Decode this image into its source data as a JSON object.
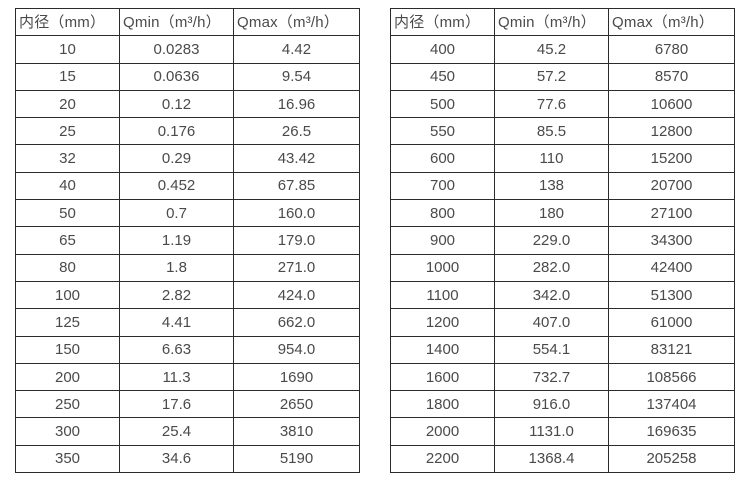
{
  "page": {
    "background_color": "#ffffff",
    "text_color": "#4a4a4a",
    "border_color": "#2b2b2b"
  },
  "tables": [
    {
      "name": "flow-table-small-diameters",
      "headers": [
        "内径（mm）",
        "Qmin（m³/h）",
        "Qmax（m³/h）"
      ],
      "rows": [
        [
          "10",
          "0.0283",
          "4.42"
        ],
        [
          "15",
          "0.0636",
          "9.54"
        ],
        [
          "20",
          "0.12",
          "16.96"
        ],
        [
          "25",
          "0.176",
          "26.5"
        ],
        [
          "32",
          "0.29",
          "43.42"
        ],
        [
          "40",
          "0.452",
          "67.85"
        ],
        [
          "50",
          "0.7",
          "160.0"
        ],
        [
          "65",
          "1.19",
          "179.0"
        ],
        [
          "80",
          "1.8",
          "271.0"
        ],
        [
          "100",
          "2.82",
          "424.0"
        ],
        [
          "125",
          "4.41",
          "662.0"
        ],
        [
          "150",
          "6.63",
          "954.0"
        ],
        [
          "200",
          "11.3",
          "1690"
        ],
        [
          "250",
          "17.6",
          "2650"
        ],
        [
          "300",
          "25.4",
          "3810"
        ],
        [
          "350",
          "34.6",
          "5190"
        ]
      ]
    },
    {
      "name": "flow-table-large-diameters",
      "headers": [
        "内径（mm）",
        "Qmin（m³/h）",
        "Qmax（m³/h）"
      ],
      "rows": [
        [
          "400",
          "45.2",
          "6780"
        ],
        [
          "450",
          "57.2",
          "8570"
        ],
        [
          "500",
          "77.6",
          "10600"
        ],
        [
          "550",
          "85.5",
          "12800"
        ],
        [
          "600",
          "110",
          "15200"
        ],
        [
          "700",
          "138",
          "20700"
        ],
        [
          "800",
          "180",
          "27100"
        ],
        [
          "900",
          "229.0",
          "34300"
        ],
        [
          "1000",
          "282.0",
          "42400"
        ],
        [
          "1100",
          "342.0",
          "51300"
        ],
        [
          "1200",
          "407.0",
          "61000"
        ],
        [
          "1400",
          "554.1",
          "83121"
        ],
        [
          "1600",
          "732.7",
          "108566"
        ],
        [
          "1800",
          "916.0",
          "137404"
        ],
        [
          "2000",
          "1131.0",
          "169635"
        ],
        [
          "2200",
          "1368.4",
          "205258"
        ]
      ]
    }
  ]
}
